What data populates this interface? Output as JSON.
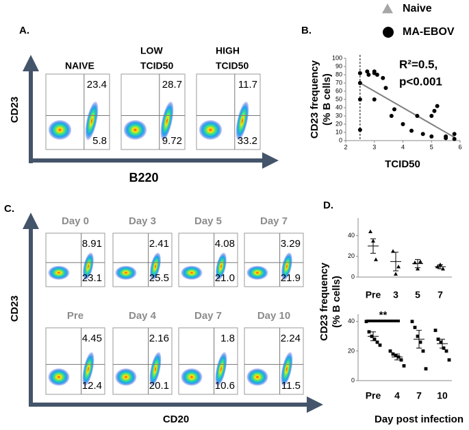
{
  "legend": [
    {
      "label": "Naive",
      "color": "#a6a6a6",
      "marker": "triangle"
    },
    {
      "label": "MA-EBOV",
      "color": "#000000",
      "marker": "circle"
    }
  ],
  "panel_a": {
    "label": "A.",
    "y_axis": "CD23",
    "x_axis": "B220",
    "plots": [
      {
        "header": [
          "NAIVE"
        ],
        "upper": "23.4",
        "lower": "5.8"
      },
      {
        "header": [
          "LOW",
          "TCID50"
        ],
        "upper": "28.7",
        "lower": "9.72"
      },
      {
        "header": [
          "HIGH",
          "TCID50"
        ],
        "upper": "11.7",
        "lower": "33.2"
      }
    ]
  },
  "panel_b": {
    "label": "B."
  },
  "panel_c": {
    "label": "C.",
    "y_axis": "CD23",
    "x_axis": "CD20",
    "plots": [
      {
        "header": "Day 0",
        "upper": "8.91",
        "lower": "23.1"
      },
      {
        "header": "Day 3",
        "upper": "2.41",
        "lower": "25.5"
      },
      {
        "header": "Day 5",
        "upper": "4.08",
        "lower": "21.0"
      },
      {
        "header": "Day 7",
        "upper": "3.29",
        "lower": "21.9"
      },
      {
        "header": "Pre",
        "upper": "4.45",
        "lower": "12.4"
      },
      {
        "header": "Day 4",
        "upper": "2.16",
        "lower": "20.1"
      },
      {
        "header": "Day 7",
        "upper": "1.8",
        "lower": "10.6"
      },
      {
        "header": "Day 10",
        "upper": "2.24",
        "lower": "11.5"
      }
    ]
  },
  "panel_d": {
    "label": "D.",
    "y_label": [
      "CD23 frequency",
      "(% B cells)"
    ],
    "x_label": "Day post infection"
  },
  "chart_data": [
    {
      "type": "scatter",
      "y_label": [
        "CD23 frequency",
        "(% B cells)"
      ],
      "x_label": "TCID50",
      "annotation": [
        "R²=0.5,",
        "p<0.001"
      ],
      "xlim": [
        2,
        6
      ],
      "xticks": [
        2,
        3,
        4,
        5,
        6
      ],
      "ylim": [
        0,
        100
      ],
      "yticks": [
        0,
        10,
        20,
        30,
        40,
        50,
        60,
        70,
        80,
        90,
        100
      ],
      "vline": 2.5,
      "series": [
        {
          "color": "#000000",
          "x": [
            2.5,
            2.5,
            2.5,
            2.5,
            2.75,
            2.8,
            3.0,
            3.0,
            3.1,
            3.3,
            3.4,
            3.0,
            3.7,
            3.6,
            4.0,
            4.3,
            4.5,
            4.7,
            5.0,
            5.1,
            5.2,
            5.0,
            5.5,
            5.5,
            5.8,
            5.8
          ],
          "values": [
            82,
            70,
            50,
            13,
            84,
            80,
            84,
            82,
            80,
            76,
            64,
            50,
            38,
            30,
            20,
            12,
            30,
            8,
            30,
            36,
            42,
            5,
            5,
            3,
            8,
            2
          ]
        }
      ],
      "fit": {
        "color": "#7f7f7f",
        "x": [
          2.5,
          5.8
        ],
        "values": [
          70,
          4
        ]
      }
    },
    {
      "type": "strip",
      "marker": "triangle",
      "color": "#000000",
      "categories": [
        "Pre",
        "3",
        "5",
        "7"
      ],
      "values": [
        [
          44,
          35,
          17
        ],
        [
          25,
          3,
          10
        ],
        [
          14,
          8,
          15
        ],
        [
          10,
          12,
          8
        ]
      ],
      "mean": [
        30,
        15,
        13,
        10
      ],
      "err": [
        7,
        9,
        4,
        2
      ],
      "ylim": [
        0,
        57
      ],
      "yticks": [
        0,
        20,
        40
      ]
    },
    {
      "type": "strip",
      "marker": "square",
      "color": "#000000",
      "categories": [
        "Pre",
        "4",
        "7",
        "10"
      ],
      "values": [
        [
          40,
          33,
          30,
          28,
          26,
          24
        ],
        [
          20,
          18,
          17,
          16,
          14,
          10
        ],
        [
          40,
          36,
          30,
          26,
          20,
          8
        ],
        [
          34,
          28,
          26,
          22,
          20,
          14
        ]
      ],
      "mean": [
        30,
        16,
        28,
        25
      ],
      "err": [
        3,
        2,
        6,
        3
      ],
      "ylim": [
        0,
        45
      ],
      "yticks": [
        0,
        20,
        40
      ],
      "annotation": "**"
    }
  ]
}
